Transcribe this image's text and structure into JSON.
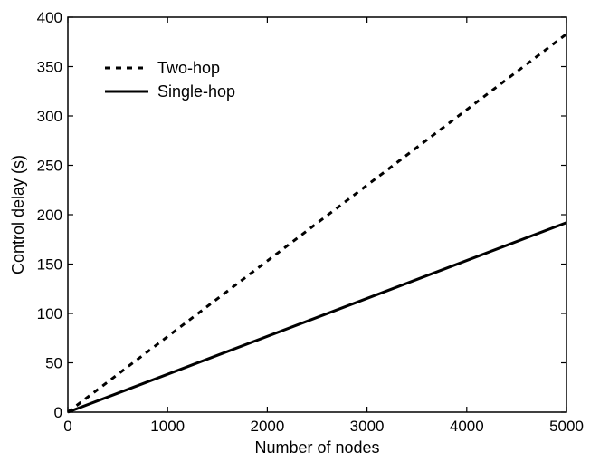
{
  "chart_data": {
    "type": "line",
    "title": "",
    "xlabel": "Number of nodes",
    "ylabel": "Control delay (s)",
    "xlim": [
      0,
      5000
    ],
    "ylim": [
      0,
      400
    ],
    "xticks": [
      0,
      1000,
      2000,
      3000,
      4000,
      5000
    ],
    "yticks": [
      0,
      50,
      100,
      150,
      200,
      250,
      300,
      350,
      400
    ],
    "grid": false,
    "legend_position": "top-left",
    "series": [
      {
        "name": "Two-hop",
        "style": "dashed",
        "color": "#000000",
        "x": [
          0,
          5000
        ],
        "y": [
          0,
          383
        ]
      },
      {
        "name": "Single-hop",
        "style": "solid",
        "color": "#000000",
        "x": [
          0,
          5000
        ],
        "y": [
          0,
          192
        ]
      }
    ]
  }
}
